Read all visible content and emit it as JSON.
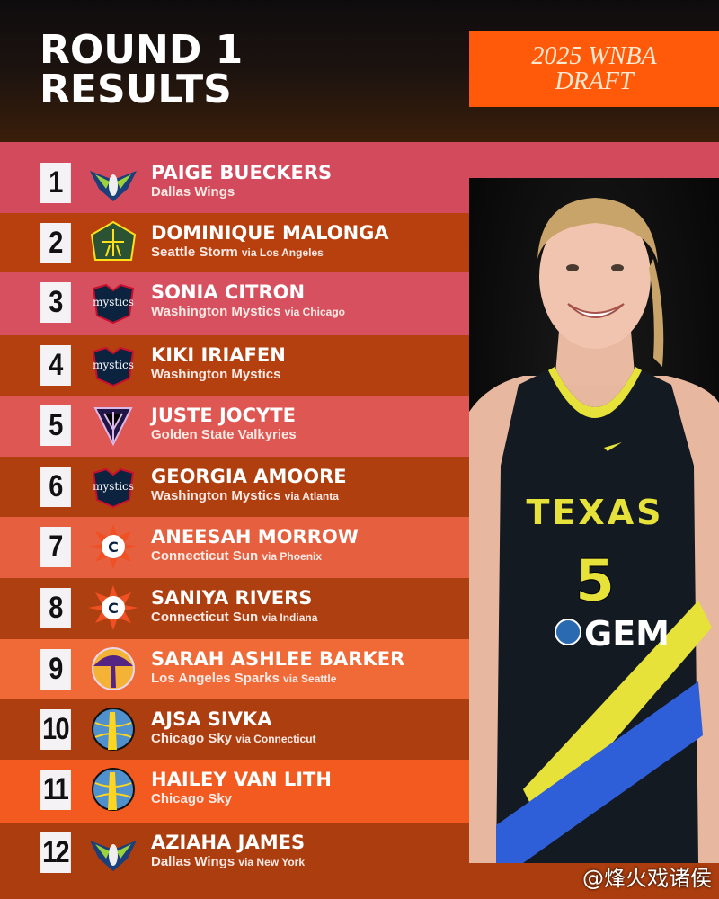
{
  "header": {
    "title_line1": "ROUND 1",
    "title_line2": "RESULTS",
    "badge_line1": "2025 WNBA",
    "badge_line2": "DRAFT"
  },
  "colors": {
    "badge": "#ff5a0a",
    "rank_box": "#f4f2f4",
    "row_light": [
      "#d24a5c",
      "#d7505f",
      "#de5752",
      "#e6603f",
      "#f06a38",
      "#f25a20"
    ],
    "row_dark": [
      "#b8400e",
      "#b43f0f",
      "#b03f10",
      "#ae3f10",
      "#ad3e0f",
      "#ab3d0e"
    ]
  },
  "picks": [
    {
      "rank": "1",
      "name": "PAIGE BUECKERS",
      "team": "Dallas Wings",
      "via": "",
      "logo": "dallas-wings-logo"
    },
    {
      "rank": "2",
      "name": "DOMINIQUE MALONGA",
      "team": "Seattle Storm",
      "via": "via Los Angeles",
      "logo": "seattle-storm-logo"
    },
    {
      "rank": "3",
      "name": "SONIA CITRON",
      "team": "Washington Mystics",
      "via": "via Chicago",
      "logo": "washington-mystics-logo"
    },
    {
      "rank": "4",
      "name": "KIKI IRIAFEN",
      "team": "Washington Mystics",
      "via": "",
      "logo": "washington-mystics-logo"
    },
    {
      "rank": "5",
      "name": "JUSTE JOCYTE",
      "team": "Golden State Valkyries",
      "via": "",
      "logo": "golden-state-valkyries-logo"
    },
    {
      "rank": "6",
      "name": "GEORGIA AMOORE",
      "team": "Washington Mystics",
      "via": "via Atlanta",
      "logo": "washington-mystics-logo"
    },
    {
      "rank": "7",
      "name": "ANEESAH MORROW",
      "team": "Connecticut Sun",
      "via": "via Phoenix",
      "logo": "connecticut-sun-logo"
    },
    {
      "rank": "8",
      "name": "SANIYA RIVERS",
      "team": "Connecticut Sun",
      "via": "via Indiana",
      "logo": "connecticut-sun-logo"
    },
    {
      "rank": "9",
      "name": "SARAH ASHLEE BARKER",
      "team": "Los Angeles Sparks",
      "via": "via Seattle",
      "logo": "los-angeles-sparks-logo"
    },
    {
      "rank": "10",
      "name": "AJSA SIVKA",
      "team": "Chicago Sky",
      "via": "via Connecticut",
      "logo": "chicago-sky-logo"
    },
    {
      "rank": "11",
      "name": "HAILEY VAN LITH",
      "team": "Chicago Sky",
      "via": "",
      "logo": "chicago-sky-logo"
    },
    {
      "rank": "12",
      "name": "AZIAHA JAMES",
      "team": "Dallas Wings",
      "via": "via New York",
      "logo": "dallas-wings-logo"
    }
  ],
  "photo": {
    "jersey_text": "TEXAS",
    "jersey_number": "5",
    "sponsor": "GEM"
  },
  "watermark": "@烽火戏诸侯"
}
